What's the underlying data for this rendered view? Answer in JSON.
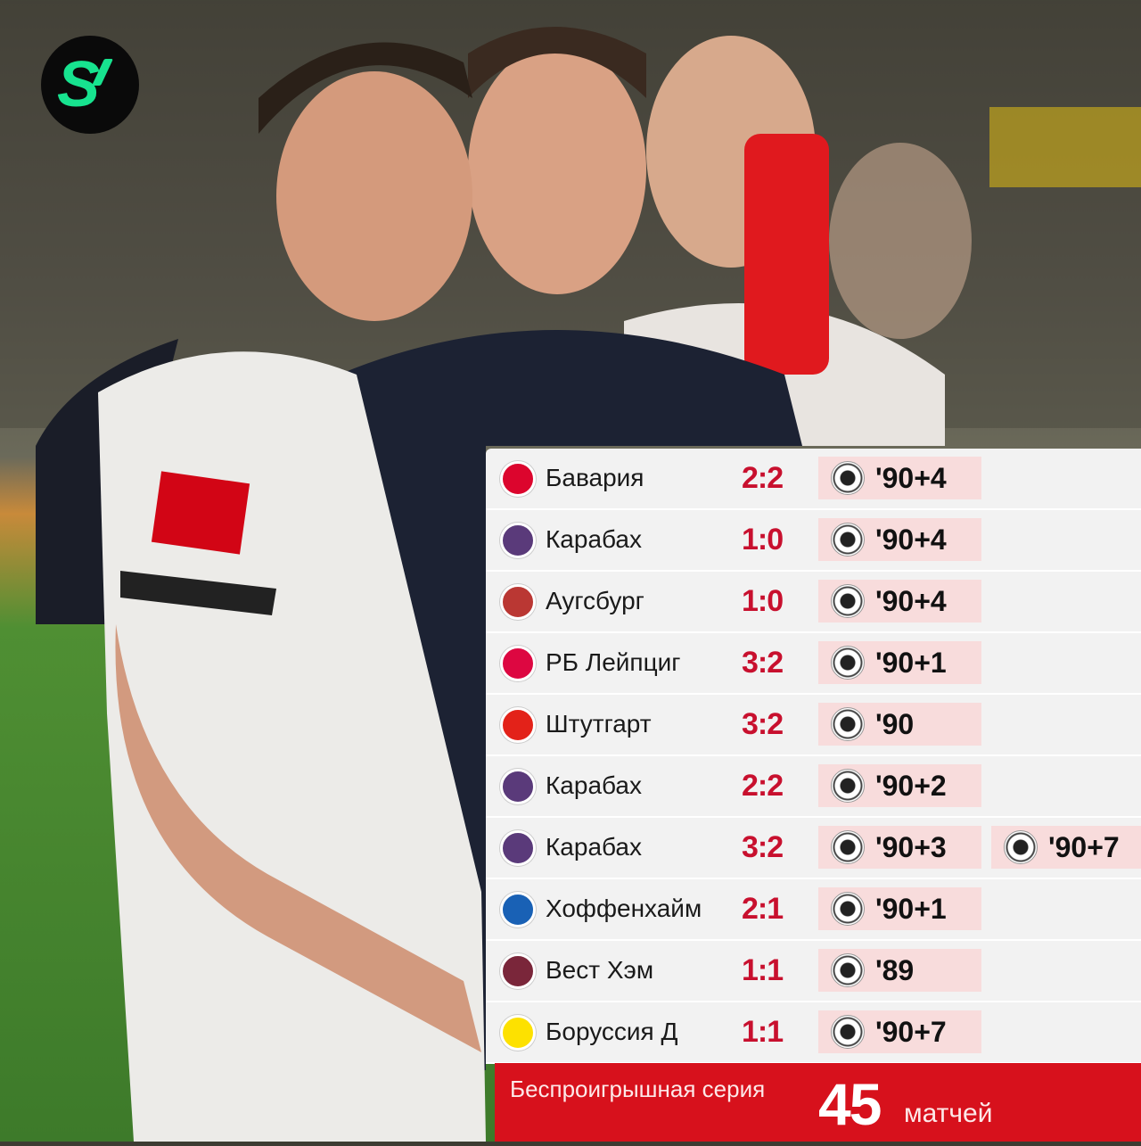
{
  "brand": {
    "logo_text": "S",
    "accent": "#17e38f"
  },
  "colors": {
    "score": "#c8102e",
    "chip": "#f8dcdc",
    "footer": "#d7111c"
  },
  "matches": [
    {
      "team": "Бавария",
      "crest": "bayern-crest-icon",
      "crest_color": "#dc052d",
      "score": "2:2",
      "goals": [
        "'90+4"
      ]
    },
    {
      "team": "Карабах",
      "crest": "qarabag-crest-icon",
      "crest_color": "#5a3a7a",
      "score": "1:0",
      "goals": [
        "'90+4"
      ]
    },
    {
      "team": "Аугсбург",
      "crest": "augsburg-crest-icon",
      "crest_color": "#ba3733",
      "score": "1:0",
      "goals": [
        "'90+4"
      ]
    },
    {
      "team": "РБ Лейпциг",
      "crest": "leipzig-crest-icon",
      "crest_color": "#dd0741",
      "score": "3:2",
      "goals": [
        "'90+1"
      ]
    },
    {
      "team": "Штутгарт",
      "crest": "stuttgart-crest-icon",
      "crest_color": "#e32219",
      "score": "3:2",
      "goals": [
        "'90"
      ]
    },
    {
      "team": "Карабах",
      "crest": "qarabag-crest-icon",
      "crest_color": "#5a3a7a",
      "score": "2:2",
      "goals": [
        "'90+2"
      ]
    },
    {
      "team": "Карабах",
      "crest": "qarabag-crest-icon",
      "crest_color": "#5a3a7a",
      "score": "3:2",
      "goals": [
        "'90+3",
        "'90+7"
      ]
    },
    {
      "team": "Хоффенхайм",
      "crest": "hoffenheim-crest-icon",
      "crest_color": "#1961b5",
      "score": "2:1",
      "goals": [
        "'90+1"
      ]
    },
    {
      "team": "Вест Хэм",
      "crest": "westham-crest-icon",
      "crest_color": "#7a263a",
      "score": "1:1",
      "goals": [
        "'89"
      ]
    },
    {
      "team": "Боруссия Д",
      "crest": "dortmund-crest-icon",
      "crest_color": "#fde100",
      "score": "1:1",
      "goals": [
        "'90+7"
      ]
    }
  ],
  "footer": {
    "label": "Беспроигрышная серия",
    "number": "45",
    "unit": "матчей"
  }
}
